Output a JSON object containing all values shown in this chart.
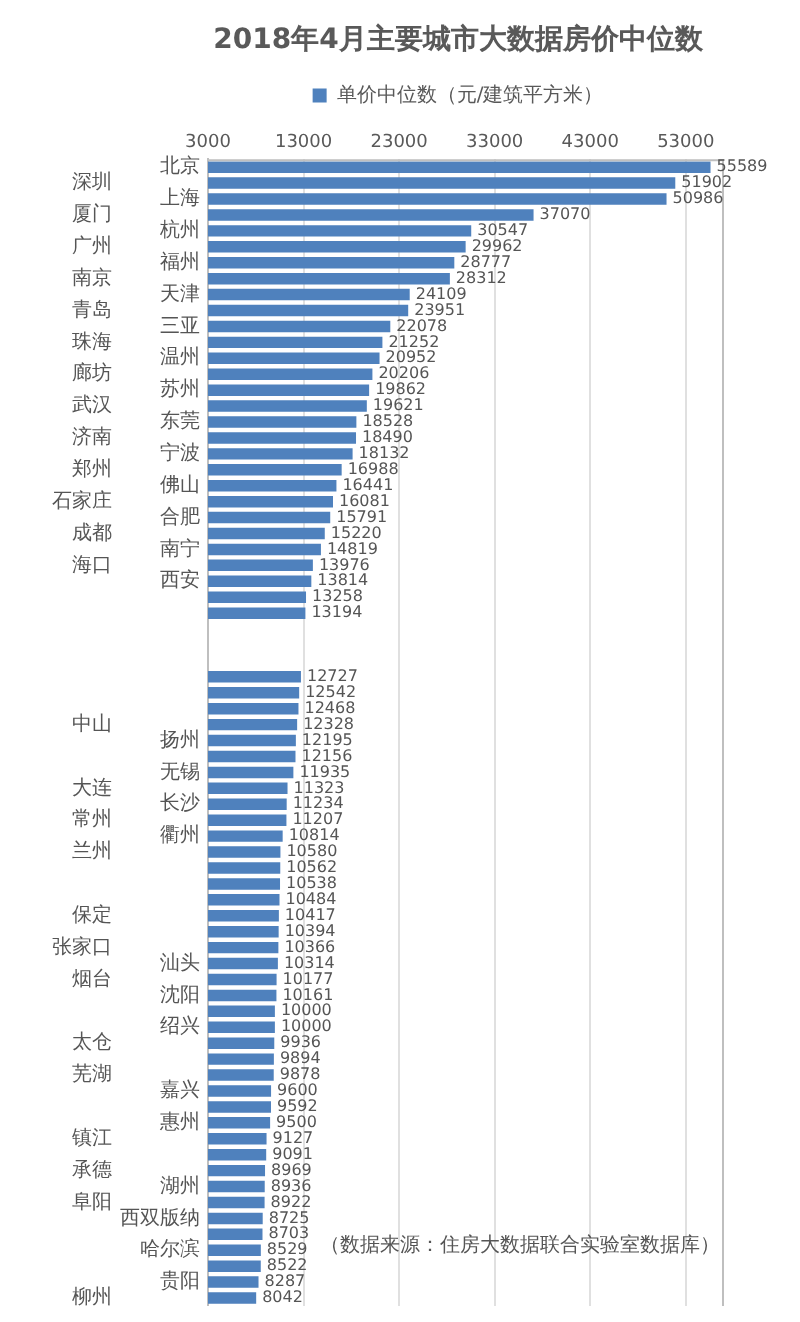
{
  "chart_data": {
    "type": "bar",
    "orientation": "horizontal",
    "title": "2018年4月主要城市大数据房价中位数",
    "categories": [
      "北京",
      "深圳",
      "上海",
      "厦门",
      "杭州",
      "广州",
      "福州",
      "南京",
      "天津",
      "青岛",
      "三亚",
      "珠海",
      "温州",
      "廊坊",
      "苏州",
      "武汉",
      "东莞",
      "济南",
      "宁波",
      "郑州",
      "佛山",
      "石家庄",
      "合肥",
      "成都",
      "南宁",
      "海口",
      "西安",
      null,
      null,
      null,
      null,
      null,
      null,
      null,
      null,
      "中山",
      "扬州",
      null,
      "无锡",
      "大连",
      "长沙",
      "常州",
      "衢州",
      "兰州",
      null,
      null,
      null,
      "保定",
      null,
      "张家口",
      "汕头",
      "烟台",
      "沈阳",
      null,
      "绍兴",
      "太仓",
      null,
      "芜湖",
      "嘉兴",
      null,
      "惠州",
      "镇江",
      null,
      "承德",
      "湖州",
      "阜阳",
      "西双版纳",
      null,
      "哈尔滨",
      null,
      "贵阳",
      "柳州"
    ],
    "series": [
      {
        "name": "单价中位数（元/建筑平方米）",
        "color": "#4f81bd",
        "values": [
          55589,
          51902,
          50986,
          37070,
          30547,
          29962,
          28777,
          28312,
          24109,
          23951,
          22078,
          21252,
          20952,
          20206,
          19862,
          19621,
          18528,
          18490,
          18132,
          16988,
          16441,
          16081,
          15791,
          15220,
          14819,
          13976,
          13814,
          13258,
          13194,
          null,
          null,
          null,
          12727,
          12542,
          12468,
          12328,
          12195,
          12156,
          11935,
          11323,
          11234,
          11207,
          10814,
          10580,
          10562,
          10538,
          10484,
          10417,
          10394,
          10366,
          10314,
          10177,
          10161,
          10000,
          10000,
          9936,
          9894,
          9878,
          9600,
          9592,
          9500,
          9127,
          9091,
          8969,
          8936,
          8922,
          8725,
          8703,
          8529,
          8522,
          8287,
          8042
        ]
      }
    ],
    "xlim": [
      3000,
      57000
    ],
    "xticks": [
      3000,
      13000,
      23000,
      33000,
      43000,
      53000
    ],
    "grid": "x",
    "legend": "top",
    "data_labels": true,
    "annotations": [
      "（数据来源：住房大数据联合实验室数据库）"
    ]
  }
}
